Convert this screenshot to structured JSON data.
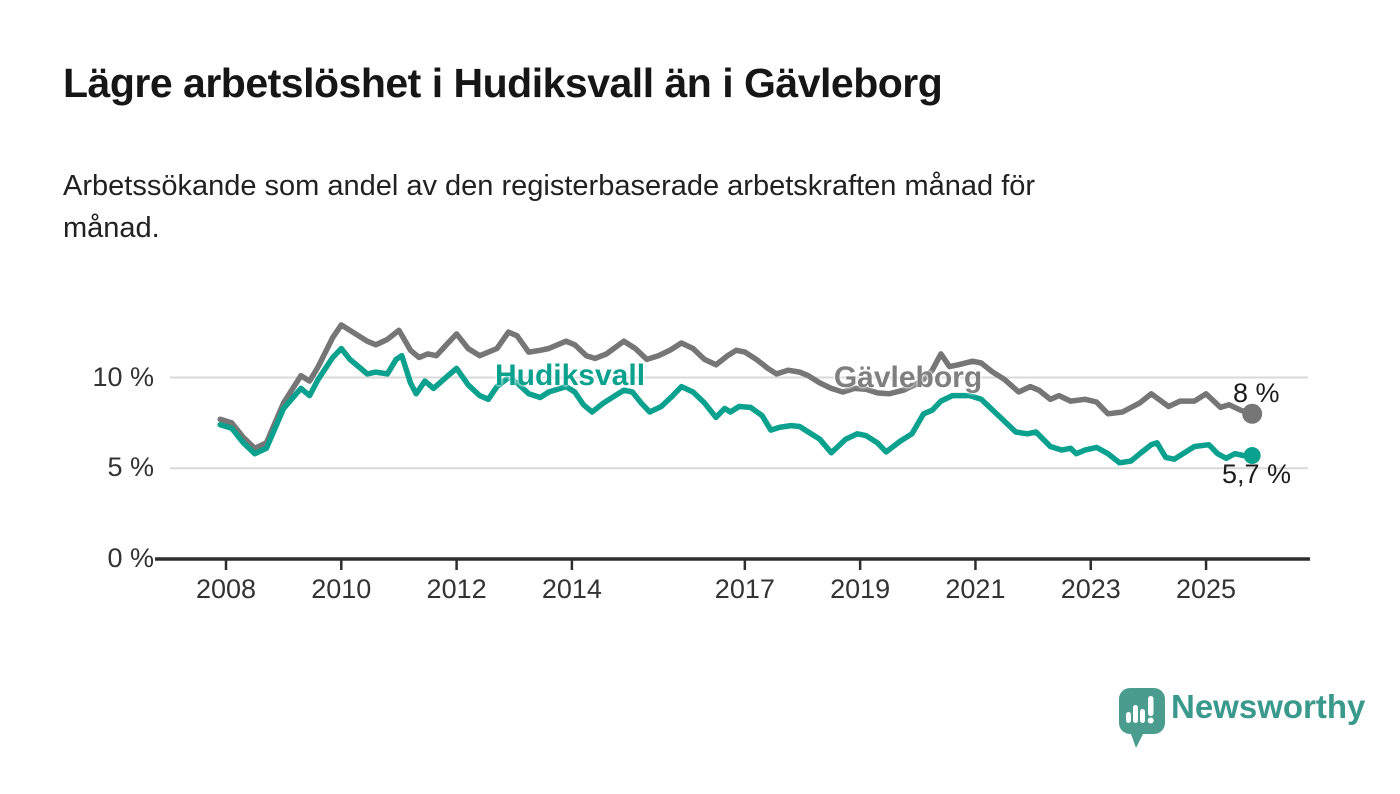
{
  "chart_data": {
    "type": "line",
    "title": "Lägre arbetslöshet i Hudiksvall än i Gävleborg",
    "subtitle": "Arbetssökande som andel av den registerbaserade arbetskraften månad för månad.",
    "subtitle_lines": [
      "Arbetssökande som andel av den registerbaserade arbetskraften månad för",
      "månad."
    ],
    "unit": "%",
    "grid": "horizontal",
    "x_axis": {
      "ticks": [
        2008,
        2010,
        2012,
        2014,
        2017,
        2019,
        2021,
        2023,
        2025
      ],
      "labels": [
        "2008",
        "2010",
        "2012",
        "2014",
        "2017",
        "2019",
        "2021",
        "2023",
        "2025"
      ],
      "range": [
        2007.75,
        2026.3
      ]
    },
    "y_axis": {
      "ticks": [
        0,
        5,
        10
      ],
      "labels": [
        "0 %",
        "5 %",
        "10 %"
      ],
      "gridlines": [
        5,
        10
      ],
      "range": [
        0,
        15.5
      ]
    },
    "series": [
      {
        "name": "Gävleborg",
        "color": "#767676",
        "label_color": "#7f7f7f",
        "end_label": "8 %",
        "end_value": 8,
        "points": [
          [
            2007.9,
            7.7
          ],
          [
            2008.1,
            7.5
          ],
          [
            2008.3,
            6.7
          ],
          [
            2008.5,
            6.1
          ],
          [
            2008.7,
            6.4
          ],
          [
            2009.0,
            8.6
          ],
          [
            2009.3,
            10.1
          ],
          [
            2009.45,
            9.8
          ],
          [
            2009.6,
            10.6
          ],
          [
            2009.85,
            12.2
          ],
          [
            2010.0,
            12.9
          ],
          [
            2010.15,
            12.6
          ],
          [
            2010.3,
            12.3
          ],
          [
            2010.45,
            12.0
          ],
          [
            2010.6,
            11.8
          ],
          [
            2010.8,
            12.1
          ],
          [
            2011.0,
            12.6
          ],
          [
            2011.2,
            11.5
          ],
          [
            2011.35,
            11.1
          ],
          [
            2011.5,
            11.3
          ],
          [
            2011.65,
            11.2
          ],
          [
            2011.85,
            11.9
          ],
          [
            2012.0,
            12.4
          ],
          [
            2012.2,
            11.6
          ],
          [
            2012.4,
            11.2
          ],
          [
            2012.55,
            11.4
          ],
          [
            2012.7,
            11.6
          ],
          [
            2012.9,
            12.5
          ],
          [
            2013.05,
            12.3
          ],
          [
            2013.25,
            11.4
          ],
          [
            2013.45,
            11.5
          ],
          [
            2013.6,
            11.6
          ],
          [
            2013.9,
            12.0
          ],
          [
            2014.05,
            11.8
          ],
          [
            2014.25,
            11.2
          ],
          [
            2014.4,
            11.05
          ],
          [
            2014.6,
            11.3
          ],
          [
            2014.9,
            12.0
          ],
          [
            2015.1,
            11.6
          ],
          [
            2015.3,
            11.0
          ],
          [
            2015.5,
            11.2
          ],
          [
            2015.7,
            11.5
          ],
          [
            2015.9,
            11.9
          ],
          [
            2016.1,
            11.6
          ],
          [
            2016.3,
            11.0
          ],
          [
            2016.5,
            10.7
          ],
          [
            2016.7,
            11.2
          ],
          [
            2016.85,
            11.5
          ],
          [
            2017.0,
            11.4
          ],
          [
            2017.2,
            11.0
          ],
          [
            2017.4,
            10.5
          ],
          [
            2017.55,
            10.2
          ],
          [
            2017.75,
            10.4
          ],
          [
            2017.95,
            10.3
          ],
          [
            2018.1,
            10.1
          ],
          [
            2018.3,
            9.7
          ],
          [
            2018.5,
            9.4
          ],
          [
            2018.7,
            9.2
          ],
          [
            2018.9,
            9.4
          ],
          [
            2019.1,
            9.35
          ],
          [
            2019.3,
            9.15
          ],
          [
            2019.5,
            9.1
          ],
          [
            2019.75,
            9.3
          ],
          [
            2019.95,
            9.6
          ],
          [
            2020.1,
            9.9
          ],
          [
            2020.25,
            10.4
          ],
          [
            2020.4,
            11.3
          ],
          [
            2020.55,
            10.6
          ],
          [
            2020.7,
            10.7
          ],
          [
            2020.95,
            10.9
          ],
          [
            2021.1,
            10.8
          ],
          [
            2021.3,
            10.3
          ],
          [
            2021.5,
            9.9
          ],
          [
            2021.75,
            9.2
          ],
          [
            2021.95,
            9.5
          ],
          [
            2022.1,
            9.3
          ],
          [
            2022.3,
            8.8
          ],
          [
            2022.45,
            9.0
          ],
          [
            2022.65,
            8.7
          ],
          [
            2022.9,
            8.8
          ],
          [
            2023.1,
            8.65
          ],
          [
            2023.3,
            8.0
          ],
          [
            2023.55,
            8.1
          ],
          [
            2023.85,
            8.6
          ],
          [
            2024.05,
            9.1
          ],
          [
            2024.35,
            8.4
          ],
          [
            2024.55,
            8.7
          ],
          [
            2024.8,
            8.7
          ],
          [
            2025.0,
            9.1
          ],
          [
            2025.25,
            8.35
          ],
          [
            2025.4,
            8.5
          ],
          [
            2025.6,
            8.2
          ],
          [
            2025.8,
            8.0
          ]
        ]
      },
      {
        "name": "Hudiksvall",
        "color": "#0aa18e",
        "label_color": "#0aa18e",
        "end_label": "5,7 %",
        "end_value": 5.7,
        "points": [
          [
            2007.9,
            7.4
          ],
          [
            2008.1,
            7.2
          ],
          [
            2008.3,
            6.4
          ],
          [
            2008.5,
            5.8
          ],
          [
            2008.7,
            6.1
          ],
          [
            2009.0,
            8.3
          ],
          [
            2009.3,
            9.4
          ],
          [
            2009.45,
            9.0
          ],
          [
            2009.6,
            9.9
          ],
          [
            2009.85,
            11.1
          ],
          [
            2010.0,
            11.6
          ],
          [
            2010.15,
            11.0
          ],
          [
            2010.3,
            10.6
          ],
          [
            2010.45,
            10.2
          ],
          [
            2010.6,
            10.3
          ],
          [
            2010.8,
            10.2
          ],
          [
            2010.95,
            11.0
          ],
          [
            2011.05,
            11.2
          ],
          [
            2011.2,
            9.7
          ],
          [
            2011.3,
            9.1
          ],
          [
            2011.45,
            9.8
          ],
          [
            2011.6,
            9.4
          ],
          [
            2011.85,
            10.1
          ],
          [
            2012.0,
            10.5
          ],
          [
            2012.2,
            9.6
          ],
          [
            2012.4,
            9.0
          ],
          [
            2012.55,
            8.8
          ],
          [
            2012.7,
            9.5
          ],
          [
            2012.9,
            10.0
          ],
          [
            2013.05,
            9.7
          ],
          [
            2013.25,
            9.1
          ],
          [
            2013.45,
            8.9
          ],
          [
            2013.6,
            9.2
          ],
          [
            2013.9,
            9.5
          ],
          [
            2014.05,
            9.2
          ],
          [
            2014.2,
            8.5
          ],
          [
            2014.35,
            8.1
          ],
          [
            2014.55,
            8.6
          ],
          [
            2014.9,
            9.3
          ],
          [
            2015.05,
            9.2
          ],
          [
            2015.2,
            8.6
          ],
          [
            2015.35,
            8.1
          ],
          [
            2015.55,
            8.4
          ],
          [
            2015.75,
            9.0
          ],
          [
            2015.9,
            9.5
          ],
          [
            2016.1,
            9.2
          ],
          [
            2016.3,
            8.6
          ],
          [
            2016.5,
            7.8
          ],
          [
            2016.65,
            8.3
          ],
          [
            2016.75,
            8.1
          ],
          [
            2016.9,
            8.4
          ],
          [
            2017.1,
            8.35
          ],
          [
            2017.3,
            7.9
          ],
          [
            2017.45,
            7.1
          ],
          [
            2017.6,
            7.25
          ],
          [
            2017.8,
            7.35
          ],
          [
            2017.95,
            7.3
          ],
          [
            2018.1,
            7.0
          ],
          [
            2018.3,
            6.6
          ],
          [
            2018.5,
            5.85
          ],
          [
            2018.75,
            6.6
          ],
          [
            2018.95,
            6.9
          ],
          [
            2019.1,
            6.8
          ],
          [
            2019.3,
            6.4
          ],
          [
            2019.45,
            5.9
          ],
          [
            2019.7,
            6.5
          ],
          [
            2019.9,
            6.9
          ],
          [
            2020.1,
            8.0
          ],
          [
            2020.25,
            8.2
          ],
          [
            2020.4,
            8.7
          ],
          [
            2020.6,
            9.0
          ],
          [
            2020.9,
            9.0
          ],
          [
            2021.1,
            8.8
          ],
          [
            2021.4,
            7.9
          ],
          [
            2021.7,
            7.0
          ],
          [
            2021.9,
            6.9
          ],
          [
            2022.05,
            7.0
          ],
          [
            2022.3,
            6.2
          ],
          [
            2022.5,
            6.0
          ],
          [
            2022.65,
            6.1
          ],
          [
            2022.75,
            5.8
          ],
          [
            2022.9,
            6.0
          ],
          [
            2023.1,
            6.15
          ],
          [
            2023.3,
            5.8
          ],
          [
            2023.5,
            5.3
          ],
          [
            2023.7,
            5.4
          ],
          [
            2023.85,
            5.8
          ],
          [
            2024.05,
            6.3
          ],
          [
            2024.15,
            6.4
          ],
          [
            2024.3,
            5.6
          ],
          [
            2024.45,
            5.5
          ],
          [
            2024.6,
            5.8
          ],
          [
            2024.8,
            6.2
          ],
          [
            2025.05,
            6.3
          ],
          [
            2025.2,
            5.8
          ],
          [
            2025.35,
            5.55
          ],
          [
            2025.5,
            5.8
          ],
          [
            2025.65,
            5.7
          ],
          [
            2025.8,
            5.7
          ]
        ]
      }
    ]
  },
  "footer": {
    "brand": "Newsworthy",
    "brand_color": "#39998d",
    "icon_color": "#4a9c8e"
  },
  "colors": {
    "axis": "#2e2e2e",
    "grid": "#d9d9d9",
    "tick_text": "#333333",
    "title": "#161616"
  }
}
